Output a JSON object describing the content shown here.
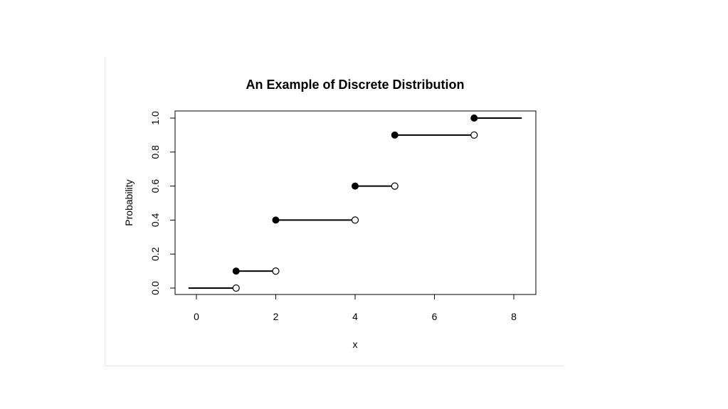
{
  "chart_data": {
    "type": "step",
    "title": "An Example of Discrete Distribution",
    "xlabel": "x",
    "ylabel": "Probability",
    "xlim": [
      -0.5,
      8.5
    ],
    "ylim": [
      -0.04,
      1.04
    ],
    "xticks": [
      0,
      2,
      4,
      6,
      8
    ],
    "yticks": [
      0.0,
      0.2,
      0.4,
      0.6,
      0.8,
      1.0
    ],
    "ytick_labels": [
      "0.0",
      "0.2",
      "0.4",
      "0.6",
      "0.8",
      "1.0"
    ],
    "grid": false,
    "segments": [
      {
        "x_start": -0.2,
        "x_end": 1,
        "y": 0.0,
        "closed_start": false,
        "open_end": true
      },
      {
        "x_start": 1,
        "x_end": 2,
        "y": 0.1,
        "closed_start": true,
        "open_end": true
      },
      {
        "x_start": 2,
        "x_end": 4,
        "y": 0.4,
        "closed_start": true,
        "open_end": true
      },
      {
        "x_start": 4,
        "x_end": 5,
        "y": 0.6,
        "closed_start": true,
        "open_end": true
      },
      {
        "x_start": 5,
        "x_end": 7,
        "y": 0.9,
        "closed_start": true,
        "open_end": true
      },
      {
        "x_start": 7,
        "x_end": 8.2,
        "y": 1.0,
        "closed_start": true,
        "open_end": false
      }
    ]
  }
}
